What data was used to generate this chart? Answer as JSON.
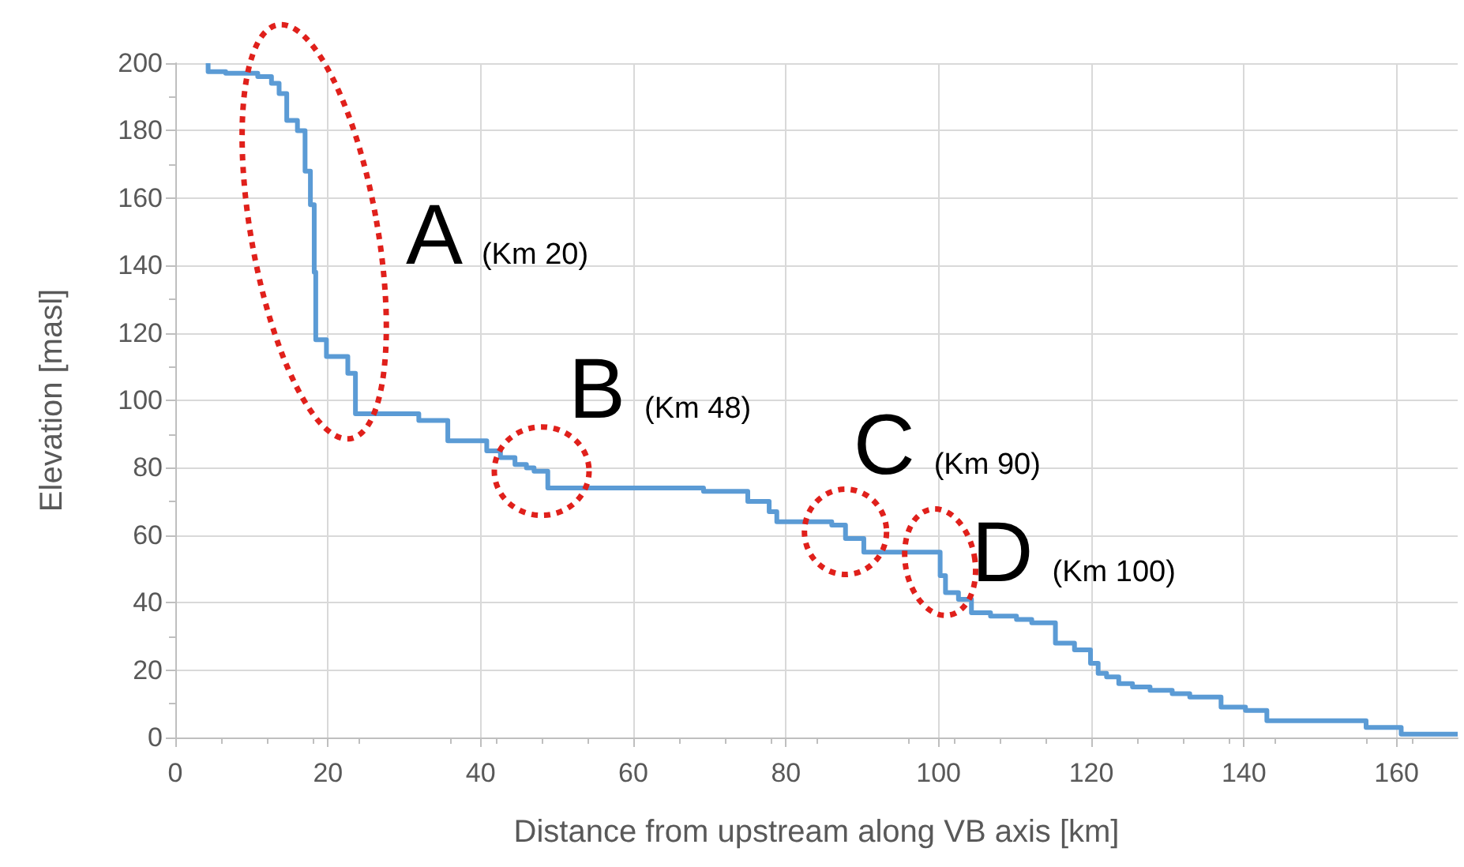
{
  "chart_data": {
    "type": "step",
    "xlabel": "Distance from upstream along VB axis [km]",
    "ylabel": "Elevation [masl]",
    "xlim": [
      0,
      168
    ],
    "xticks": [
      0,
      20,
      40,
      60,
      80,
      100,
      120,
      140,
      160
    ],
    "ylim": [
      0,
      200
    ],
    "yticks": [
      0,
      20,
      40,
      60,
      80,
      100,
      120,
      140,
      160,
      180,
      200
    ],
    "grid": true,
    "marker": "none",
    "line_style": "solid",
    "series": [
      {
        "color": "#5b9bd5",
        "x": [
          4.3,
          6.6,
          10.8,
          12.6,
          13.6,
          14.6,
          16.0,
          17.0,
          17.7,
          18.2,
          18.4,
          19.8,
          22.6,
          23.6,
          31.9,
          35.7,
          40.8,
          42.6,
          44.5,
          46,
          47,
          48.8,
          69.2,
          75,
          77.8,
          78.8,
          86,
          87.8,
          90.2,
          100.2,
          100.9,
          102.6,
          104.3,
          106.8,
          110.2,
          112.2,
          115.3,
          117.8,
          119.9,
          120.9,
          122,
          123.6,
          125.4,
          127.7,
          130.6,
          132.9,
          137,
          140.2,
          143,
          156,
          160.6,
          168
        ],
        "values": [
          200,
          197.5,
          197,
          196,
          194,
          191,
          183,
          180,
          168,
          158,
          138,
          118,
          113,
          108,
          96,
          94,
          88,
          85,
          83,
          81,
          80,
          79,
          74,
          73,
          70,
          67,
          64,
          63,
          59,
          55,
          48,
          43,
          41,
          37,
          36,
          35,
          34,
          28,
          26,
          22,
          19,
          18,
          16,
          15,
          14,
          13,
          12,
          9,
          8,
          5,
          3,
          1
        ]
      }
    ],
    "annotations": [
      {
        "text": "A (Km 20)",
        "x": 18.2,
        "y": 150
      },
      {
        "text": "B (Km 48)",
        "x": 48,
        "y": 79
      },
      {
        "text": "C (Km 90)",
        "x": 87.8,
        "y": 61
      },
      {
        "text": "D (Km 100)",
        "x": 100.2,
        "y": 52
      }
    ]
  }
}
